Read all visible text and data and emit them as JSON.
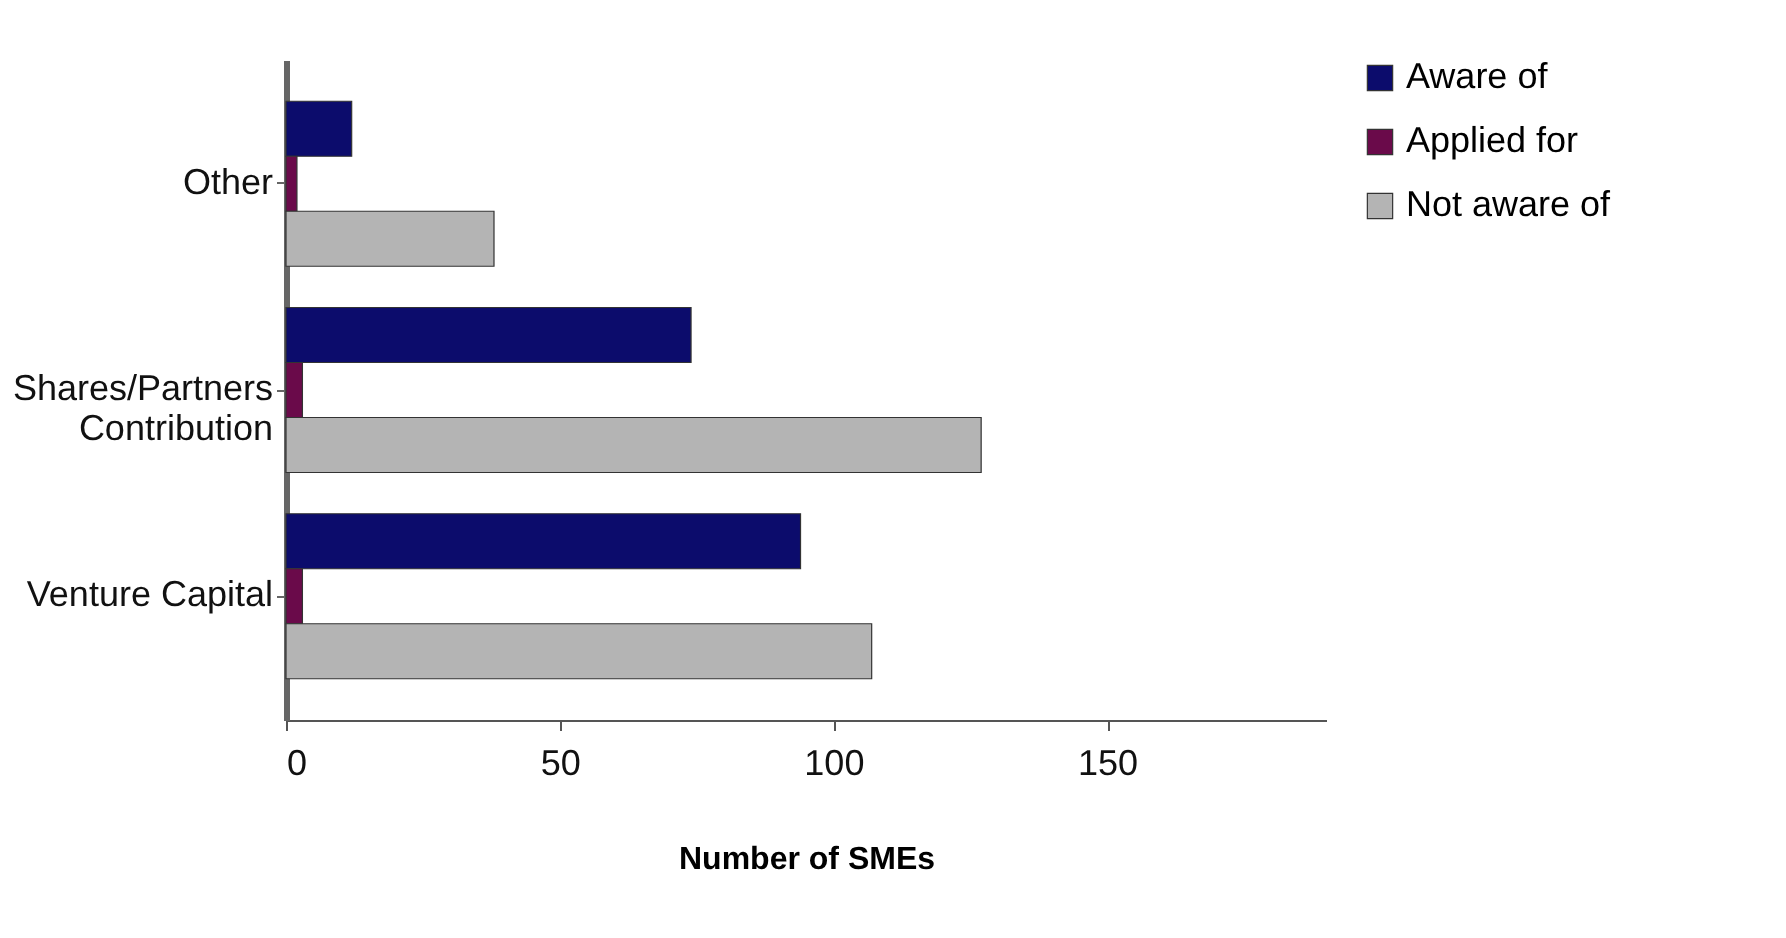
{
  "chart_data": {
    "type": "bar",
    "orientation": "horizontal",
    "xlabel": "Number of SMEs",
    "categories": [
      "Other",
      "Shares/Partners Contribution",
      "Venture Capital"
    ],
    "series": [
      {
        "name": "Aware of",
        "color": "#0c0c6c",
        "values": [
          12,
          74,
          94
        ]
      },
      {
        "name": "Applied for",
        "color": "#6a0a4a",
        "values": [
          2,
          3,
          3
        ]
      },
      {
        "name": "Not aware of",
        "color": "#b4b4b4",
        "values": [
          38,
          127,
          107
        ]
      }
    ],
    "xlim": [
      0,
      190
    ],
    "xticks": [
      0,
      50,
      100,
      150
    ],
    "grid": false,
    "legend": "right"
  }
}
